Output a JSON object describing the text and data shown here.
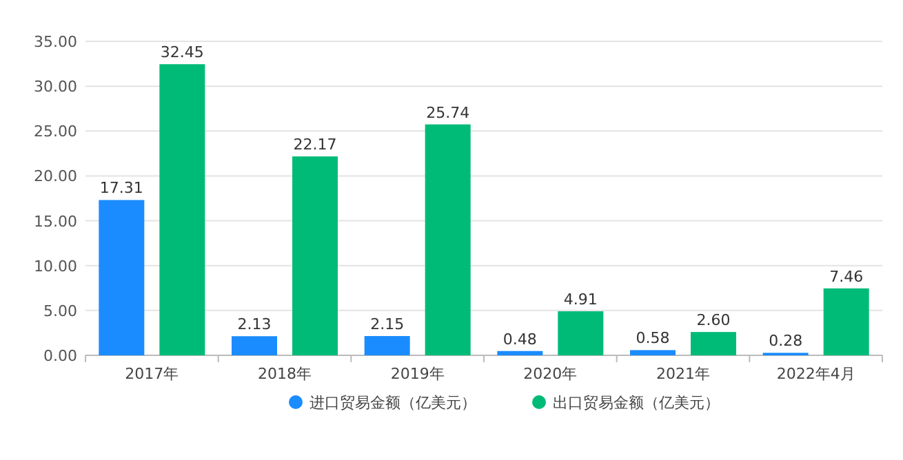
{
  "chart_data": {
    "type": "bar",
    "categories": [
      "2017年",
      "2018年",
      "2019年",
      "2020年",
      "2021年",
      "2022年4月"
    ],
    "series": [
      {
        "name": "进口贸易金额（亿美元）",
        "color": "#1a8cff",
        "values": [
          17.31,
          2.13,
          2.15,
          0.48,
          0.58,
          0.28
        ],
        "value_labels": [
          "17.31",
          "2.13",
          "2.15",
          "0.48",
          "0.58",
          "0.28"
        ]
      },
      {
        "name": "出口贸易金额（亿美元）",
        "color": "#00bb78",
        "values": [
          32.45,
          22.17,
          25.74,
          4.91,
          2.6,
          7.46
        ],
        "value_labels": [
          "32.45",
          "22.17",
          "25.74",
          "4.91",
          "2.60",
          "7.46"
        ]
      }
    ],
    "ylim": [
      0,
      35
    ],
    "yticks": [
      {
        "value": 0,
        "label": "0.00"
      },
      {
        "value": 5,
        "label": "5.00"
      },
      {
        "value": 10,
        "label": "10.00"
      },
      {
        "value": 15,
        "label": "15.00"
      },
      {
        "value": 20,
        "label": "20.00"
      },
      {
        "value": 25,
        "label": "25.00"
      },
      {
        "value": 30,
        "label": "30.00"
      },
      {
        "value": 35,
        "label": "35.00"
      }
    ],
    "grid": "y",
    "legend": "bottom"
  }
}
